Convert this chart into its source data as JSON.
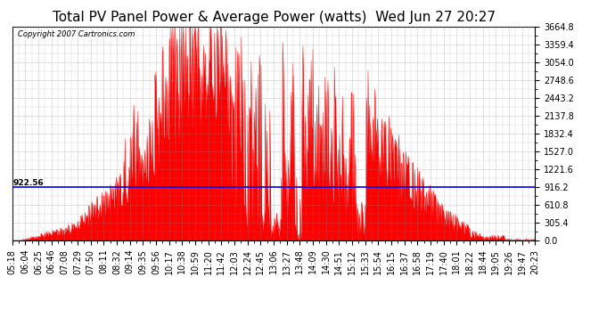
{
  "title": "Total PV Panel Power & Average Power (watts)  Wed Jun 27 20:27",
  "copyright": "Copyright 2007 Cartronics.com",
  "ymax": 3664.8,
  "ymin": 0.0,
  "ytick_values": [
    0.0,
    305.4,
    610.8,
    916.2,
    1221.6,
    1527.0,
    1832.4,
    2137.8,
    2443.2,
    2748.6,
    3054.0,
    3359.4,
    3664.8
  ],
  "average_power": 922.56,
  "average_label": "922.56",
  "fill_color": "#ff0000",
  "line_color": "#ff0000",
  "avg_line_color": "#0000ff",
  "background_color": "#ffffff",
  "grid_color": "#888888",
  "title_fontsize": 11,
  "tick_fontsize": 7,
  "xtick_labels": [
    "05:18",
    "06:04",
    "06:25",
    "06:46",
    "07:08",
    "07:29",
    "07:50",
    "08:11",
    "08:32",
    "09:14",
    "09:35",
    "09:56",
    "10:17",
    "10:38",
    "10:59",
    "11:20",
    "11:42",
    "12:03",
    "12:24",
    "12:45",
    "13:06",
    "13:27",
    "13:48",
    "14:09",
    "14:30",
    "14:51",
    "15:12",
    "15:33",
    "15:54",
    "16:15",
    "16:37",
    "16:58",
    "17:19",
    "17:40",
    "18:01",
    "18:22",
    "18:44",
    "19:05",
    "19:26",
    "19:47",
    "20:23"
  ]
}
